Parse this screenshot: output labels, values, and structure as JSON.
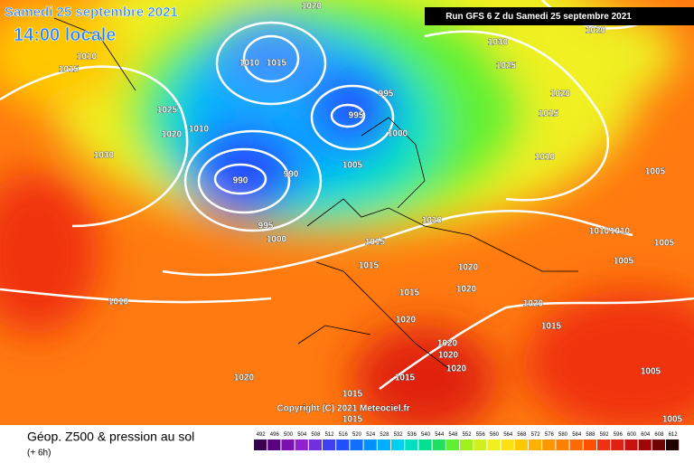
{
  "header": {
    "title": "Samedi 25 septembre 2021",
    "time": "14:00 locale",
    "run": "Run GFS 6 Z du Samedi 25 septembre 2021"
  },
  "copyright": "Copyright (C) 2021 Meteociel.fr",
  "footer": {
    "title": "Géop. Z500 & pression au sol",
    "lead": "(+ 6h)"
  },
  "isobar_labels": [
    1020,
    1010,
    1015,
    1010,
    1015,
    1025,
    1020,
    1010,
    1030,
    990,
    990,
    995,
    995,
    1000,
    1005,
    995,
    1000,
    1010,
    1015,
    1015,
    1015,
    1020,
    1020,
    1020,
    1010,
    1020,
    1020,
    1020,
    1020,
    1015,
    1015,
    1030,
    1025,
    1020,
    1015,
    1010,
    1020,
    1005,
    1010,
    1010,
    1005,
    1005,
    1020,
    1015,
    1005,
    1005,
    1015
  ],
  "scale": {
    "values": [
      492,
      496,
      500,
      504,
      508,
      512,
      516,
      520,
      524,
      528,
      532,
      536,
      540,
      544,
      548,
      552,
      556,
      560,
      564,
      568,
      572,
      576,
      580,
      584,
      588,
      592,
      596,
      600,
      604,
      608,
      612
    ],
    "colors": [
      "#3a0050",
      "#5a0080",
      "#7a10b0",
      "#9020d0",
      "#7030e0",
      "#4040f0",
      "#2050ff",
      "#1070ff",
      "#0090ff",
      "#00b0ff",
      "#00d0f0",
      "#00e0c0",
      "#00e090",
      "#20e060",
      "#60f030",
      "#a0f020",
      "#d0f020",
      "#f0f020",
      "#ffe010",
      "#ffc800",
      "#ffb000",
      "#ff9800",
      "#ff8000",
      "#ff6a00",
      "#ff5000",
      "#f03010",
      "#e02010",
      "#c81010",
      "#a00808",
      "#700404",
      "#200000"
    ]
  }
}
